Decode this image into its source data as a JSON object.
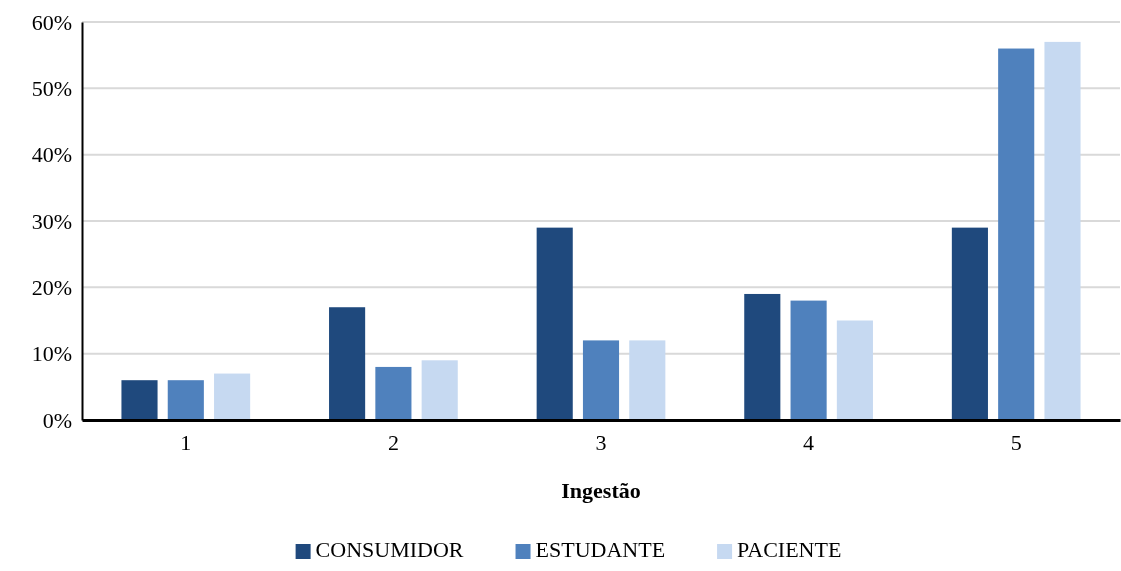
{
  "chart_data": {
    "type": "bar",
    "xlabel": "Ingestão",
    "categories": [
      "1",
      "2",
      "3",
      "4",
      "5"
    ],
    "series": [
      {
        "name": "CONSUMIDOR",
        "color": "#1f497d",
        "values": [
          6,
          17,
          29,
          19,
          29
        ]
      },
      {
        "name": "ESTUDANTE",
        "color": "#4f81bd",
        "values": [
          6,
          8,
          12,
          18,
          56
        ]
      },
      {
        "name": "PACIENTE",
        "color": "#c6d9f1",
        "values": [
          7,
          9,
          12,
          15,
          57
        ]
      }
    ],
    "ylim": [
      0,
      60
    ],
    "yticks": [
      {
        "value": 0,
        "label": "0%"
      },
      {
        "value": 10,
        "label": "10%"
      },
      {
        "value": 20,
        "label": "20%"
      },
      {
        "value": 30,
        "label": "30%"
      },
      {
        "value": 40,
        "label": "40%"
      },
      {
        "value": 50,
        "label": "50%"
      },
      {
        "value": 60,
        "label": "60%"
      }
    ],
    "grid": "y",
    "legend": "bottom"
  }
}
